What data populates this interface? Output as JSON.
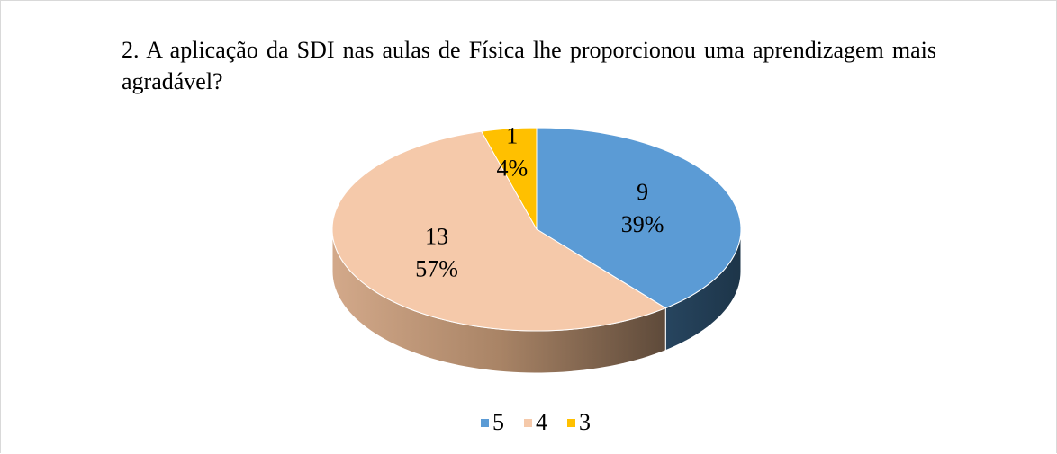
{
  "chart_data": {
    "type": "pie3d",
    "title": "2. A aplicação da SDI nas aulas de Física lhe proporcionou uma aprendizagem mais agradável?",
    "categories": [
      "5",
      "4",
      "3"
    ],
    "values": [
      9,
      13,
      1
    ],
    "percent_labels": [
      "39%",
      "57%",
      "4%"
    ],
    "colors": [
      "#5b9bd5",
      "#f5c9aa",
      "#ffc000"
    ],
    "legend": "bottom"
  }
}
